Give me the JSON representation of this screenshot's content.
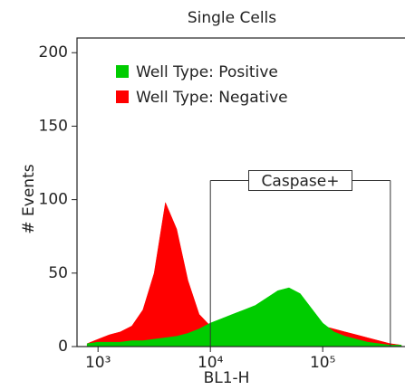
{
  "chart_data": {
    "type": "area",
    "title": "Single Cells",
    "x_label": "BL1-H",
    "y_label": "# Events",
    "log_x": true,
    "x": [
      800,
      1000,
      1260,
      1580,
      2000,
      2510,
      3160,
      3980,
      5010,
      6310,
      7940,
      10000,
      12600,
      15800,
      20000,
      25100,
      31600,
      39800,
      50100,
      63100,
      79400,
      100000,
      126000,
      158000,
      200000,
      251000,
      316000,
      398000,
      501000
    ],
    "series": [
      {
        "name": "Well Type: Negative",
        "color": "#ff0000",
        "values": [
          2,
          5,
          8,
          10,
          14,
          25,
          50,
          98,
          80,
          45,
          22,
          14,
          12,
          12,
          11,
          12,
          13,
          14,
          15,
          16,
          16,
          14,
          12,
          10,
          8,
          6,
          4,
          2,
          1
        ]
      },
      {
        "name": "Well Type: Positive",
        "color": "#00cc00",
        "values": [
          2,
          3,
          3,
          3,
          4,
          4,
          5,
          6,
          7,
          9,
          12,
          16,
          19,
          22,
          25,
          28,
          33,
          38,
          40,
          36,
          26,
          16,
          10,
          7,
          5,
          3,
          2,
          1,
          1
        ]
      }
    ],
    "legend_order": [
      1,
      0
    ],
    "legend": "upper left",
    "xlim": [
      650,
      540000
    ],
    "xticks": [
      {
        "value": 1000,
        "label": "10³"
      },
      {
        "value": 10000,
        "label": "10⁴"
      },
      {
        "value": 100000,
        "label": "10⁵"
      }
    ],
    "ylim": [
      0,
      210
    ],
    "yticks": [
      0,
      50,
      100,
      150,
      200
    ],
    "gate": {
      "label": "Caspase+",
      "x": [
        10000,
        400000
      ],
      "y": 113
    }
  }
}
